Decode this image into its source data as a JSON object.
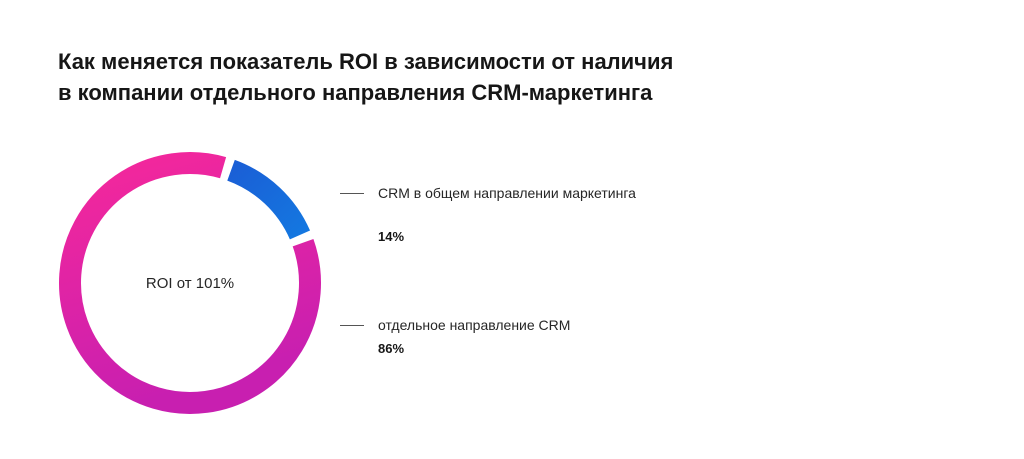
{
  "title": {
    "line1": "Как меняется показатель ROI в зависимости от наличия",
    "line2": "в компании отдельного направления CRM-маркетинга"
  },
  "chart_data": {
    "type": "pie",
    "variant": "donut",
    "title": "Как меняется показатель ROI в зависимости от наличия в компании отдельного направления CRM-маркетинга",
    "center_label": "ROI от 101%",
    "slices": [
      {
        "label": "CRM в общем направлении маркетинга",
        "value": 14,
        "value_label": "14%",
        "color": "#1a6fe0"
      },
      {
        "label": "отдельное направление CRM",
        "value": 86,
        "value_label": "86%",
        "color": "#e8259a"
      }
    ],
    "gradient_colors": {
      "blue_start": "#1a5fd6",
      "blue_end": "#1477e0",
      "pink_start": "#f5289b",
      "pink_end": "#c81fb0"
    },
    "legend_placement": "right"
  },
  "legend": {
    "items": [
      {
        "label": "CRM в общем направлении маркетинга",
        "value": "14%"
      },
      {
        "label": "отдельное направление CRM",
        "value": "86%"
      }
    ]
  }
}
